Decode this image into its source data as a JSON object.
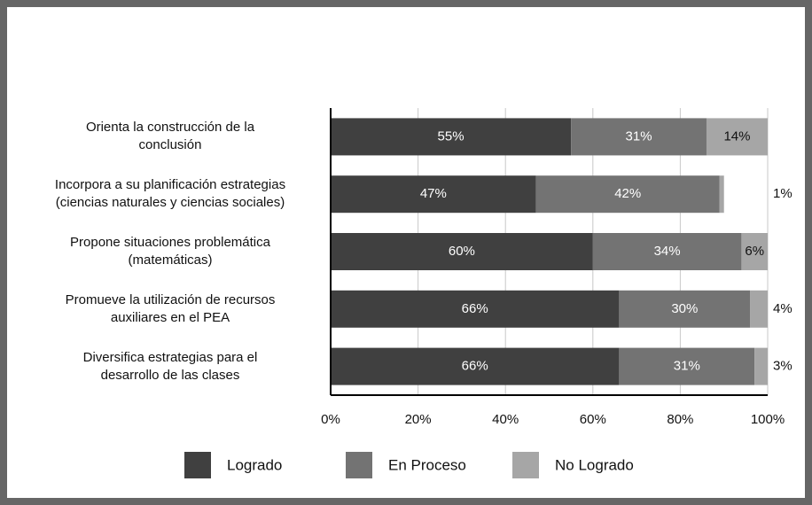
{
  "chart_data": {
    "type": "stacked-bar-horizontal",
    "categories": [
      "Orienta la construcción de la\nconclusión",
      "Incorpora a su planificación estrategias\n(ciencias naturales y ciencias sociales)",
      "Propone situaciones problemática\n(matemáticas)",
      "Promueve la utilización de recursos\nauxiliares en el PEA",
      "Diversifica estrategias para el\ndesarrollo de las clases"
    ],
    "series": [
      {
        "name": "Logrado",
        "color": "#404040",
        "values": [
          55,
          47,
          60,
          66,
          66
        ],
        "value_labels": [
          "55%",
          "47%",
          "60%",
          "66%",
          "66%"
        ]
      },
      {
        "name": "En Proceso",
        "color": "#737373",
        "values": [
          31,
          42,
          34,
          30,
          31
        ],
        "value_labels": [
          "31%",
          "42%",
          "34%",
          "30%",
          "31%"
        ]
      },
      {
        "name": "No Logrado",
        "color": "#a6a6a6",
        "values": [
          14,
          1,
          6,
          4,
          3
        ],
        "value_labels": [
          "14%",
          "1%",
          "6%",
          "4%",
          "3%"
        ]
      }
    ],
    "xlim": [
      0,
      100
    ],
    "xticks": [
      {
        "value": 0,
        "label": "0%"
      },
      {
        "value": 20,
        "label": "20%"
      },
      {
        "value": 40,
        "label": "40%"
      },
      {
        "value": 60,
        "label": "60%"
      },
      {
        "value": 80,
        "label": "80%"
      },
      {
        "value": 100,
        "label": "100%"
      }
    ],
    "grid": true,
    "legend": "bottom"
  }
}
